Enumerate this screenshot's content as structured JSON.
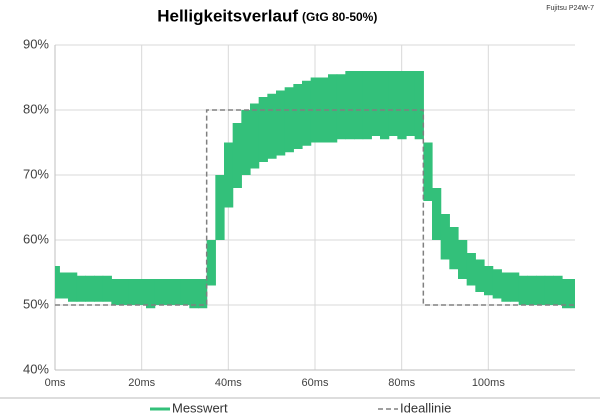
{
  "chart_data": {
    "type": "band-line",
    "title": "Helligkeitsverlauf",
    "subtitle": "(GtG 80-50%)",
    "annotation": "Fujitsu P24W-7",
    "xlim": [
      0,
      120
    ],
    "xticks": [
      {
        "value": 0,
        "label": "0ms"
      },
      {
        "value": 20,
        "label": "20ms"
      },
      {
        "value": 40,
        "label": "40ms"
      },
      {
        "value": 60,
        "label": "60ms"
      },
      {
        "value": 80,
        "label": "80ms"
      },
      {
        "value": 100,
        "label": "100ms"
      }
    ],
    "ylim": [
      40,
      90
    ],
    "yticks": [
      {
        "value": 40,
        "label": "40%"
      },
      {
        "value": 50,
        "label": "50%"
      },
      {
        "value": 60,
        "label": "60%"
      },
      {
        "value": 70,
        "label": "70%"
      },
      {
        "value": 80,
        "label": "80%"
      },
      {
        "value": 90,
        "label": "90%"
      }
    ],
    "grid": true,
    "series": [
      {
        "name": "Messwert",
        "color": "#33c07a",
        "x": [
          0,
          2,
          4,
          6,
          8,
          10,
          12,
          14,
          16,
          18,
          20,
          22,
          24,
          26,
          28,
          30,
          32,
          34,
          36,
          38,
          40,
          42,
          44,
          46,
          48,
          50,
          52,
          54,
          56,
          58,
          60,
          62,
          64,
          66,
          68,
          70,
          72,
          74,
          76,
          78,
          80,
          82,
          84,
          86,
          88,
          90,
          92,
          94,
          96,
          98,
          100,
          102,
          104,
          106,
          108,
          110,
          112,
          114,
          116,
          118,
          120
        ],
        "high": [
          56,
          55,
          55,
          54.5,
          54.5,
          54.5,
          54.5,
          54,
          54,
          54,
          54,
          54,
          54,
          54,
          54,
          54,
          54,
          54,
          60,
          70,
          75,
          78,
          80,
          81,
          82,
          82.5,
          83,
          83.5,
          84,
          84.5,
          85,
          85,
          85.5,
          85.5,
          86,
          86,
          86,
          86,
          86,
          86,
          86,
          86,
          86,
          75,
          68,
          64,
          62,
          60,
          58,
          57,
          56,
          55.5,
          55,
          55,
          54.5,
          54.5,
          54.5,
          54.5,
          54.5,
          54,
          54
        ],
        "low": [
          51,
          51,
          50.5,
          50.5,
          50.5,
          50.5,
          50.5,
          50,
          50,
          50,
          50,
          49.5,
          50,
          50,
          50,
          50,
          49.5,
          49.5,
          53,
          60,
          65,
          68,
          70,
          71,
          72,
          72.5,
          73,
          73.5,
          74,
          74.5,
          75,
          75,
          75,
          75.5,
          75.5,
          75.5,
          75.5,
          76,
          75.5,
          76,
          75.5,
          76,
          75.5,
          66,
          60,
          57,
          55.5,
          54,
          53,
          52,
          51.5,
          51,
          50.5,
          50.5,
          50,
          50,
          50,
          50,
          50,
          49.5,
          49.5
        ]
      },
      {
        "name": "Ideallinie",
        "color": "#808080",
        "style": "dashed",
        "x": [
          0,
          35,
          35,
          85,
          85,
          120
        ],
        "values": [
          50,
          50,
          80,
          80,
          50,
          50
        ]
      }
    ]
  }
}
